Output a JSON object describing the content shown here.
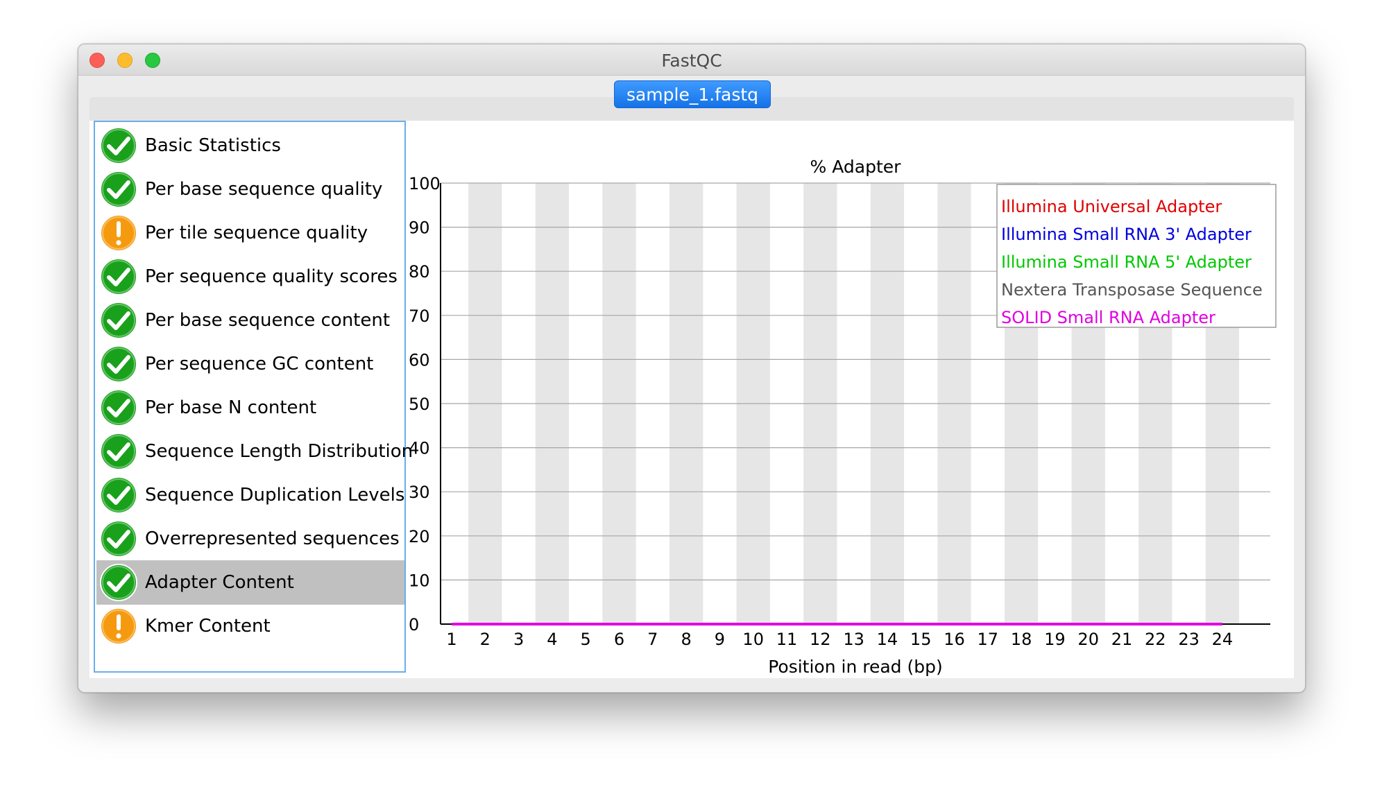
{
  "window": {
    "title": "FastQC"
  },
  "tabs": [
    {
      "label": "sample_1.fastq",
      "active": true
    }
  ],
  "modules": [
    {
      "label": "Basic Statistics",
      "status": "pass",
      "icon": "check-icon"
    },
    {
      "label": "Per base sequence quality",
      "status": "pass",
      "icon": "check-icon"
    },
    {
      "label": "Per tile sequence quality",
      "status": "warn",
      "icon": "warning-icon"
    },
    {
      "label": "Per sequence quality scores",
      "status": "pass",
      "icon": "check-icon"
    },
    {
      "label": "Per base sequence content",
      "status": "pass",
      "icon": "check-icon"
    },
    {
      "label": "Per sequence GC content",
      "status": "pass",
      "icon": "check-icon"
    },
    {
      "label": "Per base N content",
      "status": "pass",
      "icon": "check-icon"
    },
    {
      "label": "Sequence Length Distribution",
      "status": "pass",
      "icon": "check-icon"
    },
    {
      "label": "Sequence Duplication Levels",
      "status": "pass",
      "icon": "check-icon"
    },
    {
      "label": "Overrepresented sequences",
      "status": "pass",
      "icon": "check-icon"
    },
    {
      "label": "Adapter Content",
      "status": "pass",
      "icon": "check-icon",
      "selected": true
    },
    {
      "label": "Kmer Content",
      "status": "warn",
      "icon": "warning-icon"
    }
  ],
  "colors": {
    "pass": "#19a11b",
    "warn": "#f59a0f",
    "selected_row": "#c0c0c0",
    "sidebar_border": "#6aaee8",
    "band": "#e6e6e6"
  },
  "chart_data": {
    "type": "line",
    "title": "% Adapter",
    "xlabel": "Position in read (bp)",
    "ylabel": "",
    "categories": [
      "1",
      "2",
      "3",
      "4",
      "5",
      "6",
      "7",
      "8",
      "9",
      "10",
      "11",
      "12",
      "13",
      "14",
      "15",
      "16",
      "17",
      "18",
      "19",
      "20",
      "21",
      "22",
      "23",
      "24"
    ],
    "ylim": [
      0,
      100
    ],
    "yticks": [
      0,
      10,
      20,
      30,
      40,
      50,
      60,
      70,
      80,
      90,
      100
    ],
    "grid": true,
    "legend_position": "top-right",
    "series": [
      {
        "name": "Illumina Universal Adapter",
        "color": "#e00000",
        "values": [
          0,
          0,
          0,
          0,
          0,
          0,
          0,
          0,
          0,
          0,
          0,
          0,
          0,
          0,
          0,
          0,
          0,
          0,
          0,
          0,
          0,
          0,
          0,
          0
        ]
      },
      {
        "name": "Illumina Small RNA 3' Adapter",
        "color": "#0000e0",
        "values": [
          0,
          0,
          0,
          0,
          0,
          0,
          0,
          0,
          0,
          0,
          0,
          0,
          0,
          0,
          0,
          0,
          0,
          0,
          0,
          0,
          0,
          0,
          0,
          0
        ]
      },
      {
        "name": "Illumina Small RNA 5' Adapter",
        "color": "#00c800",
        "values": [
          0,
          0,
          0,
          0,
          0,
          0,
          0,
          0,
          0,
          0,
          0,
          0,
          0,
          0,
          0,
          0,
          0,
          0,
          0,
          0,
          0,
          0,
          0,
          0
        ]
      },
      {
        "name": "Nextera Transposase Sequence",
        "color": "#555555",
        "values": [
          0,
          0,
          0,
          0,
          0,
          0,
          0,
          0,
          0,
          0,
          0,
          0,
          0,
          0,
          0,
          0,
          0,
          0,
          0,
          0,
          0,
          0,
          0,
          0
        ]
      },
      {
        "name": "SOLID Small RNA Adapter",
        "color": "#e000e0",
        "values": [
          0,
          0,
          0,
          0,
          0,
          0,
          0,
          0,
          0,
          0,
          0,
          0,
          0,
          0,
          0,
          0,
          0,
          0,
          0,
          0,
          0,
          0,
          0,
          0
        ]
      }
    ]
  }
}
